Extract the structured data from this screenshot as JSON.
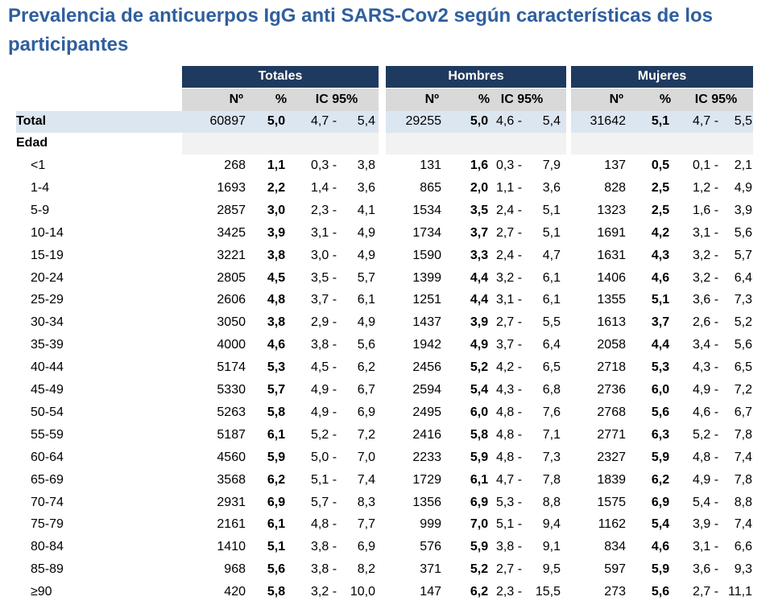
{
  "header": {
    "title": "Prevalencia de anticuerpos IgG anti SARS-Cov2 según características de los participantes"
  },
  "table": {
    "groups": [
      "Totales",
      "Hombres",
      "Mujeres"
    ],
    "subheaders": [
      "Nº",
      "%",
      "IC 95%"
    ],
    "total": {
      "label": "Total",
      "cells": [
        [
          60897,
          "5,0",
          "4,7 -",
          "5,4"
        ],
        [
          29255,
          "5,0",
          "4,6 -",
          "5,4"
        ],
        [
          31642,
          "5,1",
          "4,7 -",
          "5,5"
        ]
      ]
    },
    "section": "Edad",
    "rows": [
      {
        "label": "<1",
        "cells": [
          [
            268,
            "1,1",
            "0,3 -",
            "3,8"
          ],
          [
            131,
            "1,6",
            "0,3 -",
            "7,9"
          ],
          [
            137,
            "0,5",
            "0,1 -",
            "2,1"
          ]
        ]
      },
      {
        "label": "1-4",
        "cells": [
          [
            1693,
            "2,2",
            "1,4 -",
            "3,6"
          ],
          [
            865,
            "2,0",
            "1,1 -",
            "3,6"
          ],
          [
            828,
            "2,5",
            "1,2 -",
            "4,9"
          ]
        ]
      },
      {
        "label": "5-9",
        "cells": [
          [
            2857,
            "3,0",
            "2,3 -",
            "4,1"
          ],
          [
            1534,
            "3,5",
            "2,4 -",
            "5,1"
          ],
          [
            1323,
            "2,5",
            "1,6 -",
            "3,9"
          ]
        ]
      },
      {
        "label": "10-14",
        "cells": [
          [
            3425,
            "3,9",
            "3,1 -",
            "4,9"
          ],
          [
            1734,
            "3,7",
            "2,7 -",
            "5,1"
          ],
          [
            1691,
            "4,2",
            "3,1 -",
            "5,6"
          ]
        ]
      },
      {
        "label": "15-19",
        "cells": [
          [
            3221,
            "3,8",
            "3,0 -",
            "4,9"
          ],
          [
            1590,
            "3,3",
            "2,4 -",
            "4,7"
          ],
          [
            1631,
            "4,3",
            "3,2 -",
            "5,7"
          ]
        ]
      },
      {
        "label": "20-24",
        "cells": [
          [
            2805,
            "4,5",
            "3,5 -",
            "5,7"
          ],
          [
            1399,
            "4,4",
            "3,2 -",
            "6,1"
          ],
          [
            1406,
            "4,6",
            "3,2 -",
            "6,4"
          ]
        ]
      },
      {
        "label": "25-29",
        "cells": [
          [
            2606,
            "4,8",
            "3,7 -",
            "6,1"
          ],
          [
            1251,
            "4,4",
            "3,1 -",
            "6,1"
          ],
          [
            1355,
            "5,1",
            "3,6 -",
            "7,3"
          ]
        ]
      },
      {
        "label": "30-34",
        "cells": [
          [
            3050,
            "3,8",
            "2,9 -",
            "4,9"
          ],
          [
            1437,
            "3,9",
            "2,7 -",
            "5,5"
          ],
          [
            1613,
            "3,7",
            "2,6 -",
            "5,2"
          ]
        ]
      },
      {
        "label": "35-39",
        "cells": [
          [
            4000,
            "4,6",
            "3,8 -",
            "5,6"
          ],
          [
            1942,
            "4,9",
            "3,7 -",
            "6,4"
          ],
          [
            2058,
            "4,4",
            "3,4 -",
            "5,6"
          ]
        ]
      },
      {
        "label": "40-44",
        "cells": [
          [
            5174,
            "5,3",
            "4,5 -",
            "6,2"
          ],
          [
            2456,
            "5,2",
            "4,2 -",
            "6,5"
          ],
          [
            2718,
            "5,3",
            "4,3 -",
            "6,5"
          ]
        ]
      },
      {
        "label": "45-49",
        "cells": [
          [
            5330,
            "5,7",
            "4,9 -",
            "6,7"
          ],
          [
            2594,
            "5,4",
            "4,3 -",
            "6,8"
          ],
          [
            2736,
            "6,0",
            "4,9 -",
            "7,2"
          ]
        ]
      },
      {
        "label": "50-54",
        "cells": [
          [
            5263,
            "5,8",
            "4,9 -",
            "6,9"
          ],
          [
            2495,
            "6,0",
            "4,8 -",
            "7,6"
          ],
          [
            2768,
            "5,6",
            "4,6 -",
            "6,7"
          ]
        ]
      },
      {
        "label": "55-59",
        "cells": [
          [
            5187,
            "6,1",
            "5,2 -",
            "7,2"
          ],
          [
            2416,
            "5,8",
            "4,8 -",
            "7,1"
          ],
          [
            2771,
            "6,3",
            "5,2 -",
            "7,8"
          ]
        ]
      },
      {
        "label": "60-64",
        "cells": [
          [
            4560,
            "5,9",
            "5,0 -",
            "7,0"
          ],
          [
            2233,
            "5,9",
            "4,8 -",
            "7,3"
          ],
          [
            2327,
            "5,9",
            "4,8 -",
            "7,4"
          ]
        ]
      },
      {
        "label": "65-69",
        "cells": [
          [
            3568,
            "6,2",
            "5,1 -",
            "7,4"
          ],
          [
            1729,
            "6,1",
            "4,7 -",
            "7,8"
          ],
          [
            1839,
            "6,2",
            "4,9 -",
            "7,8"
          ]
        ]
      },
      {
        "label": "70-74",
        "cells": [
          [
            2931,
            "6,9",
            "5,7 -",
            "8,3"
          ],
          [
            1356,
            "6,9",
            "5,3 -",
            "8,8"
          ],
          [
            1575,
            "6,9",
            "5,4 -",
            "8,8"
          ]
        ]
      },
      {
        "label": "75-79",
        "cells": [
          [
            2161,
            "6,1",
            "4,8 -",
            "7,7"
          ],
          [
            999,
            "7,0",
            "5,1 -",
            "9,4"
          ],
          [
            1162,
            "5,4",
            "3,9 -",
            "7,4"
          ]
        ]
      },
      {
        "label": "80-84",
        "cells": [
          [
            1410,
            "5,1",
            "3,8 -",
            "6,9"
          ],
          [
            576,
            "5,9",
            "3,8 -",
            "9,1"
          ],
          [
            834,
            "4,6",
            "3,1 -",
            "6,6"
          ]
        ]
      },
      {
        "label": "85-89",
        "cells": [
          [
            968,
            "5,6",
            "3,8 -",
            "8,2"
          ],
          [
            371,
            "5,2",
            "2,7 -",
            "9,5"
          ],
          [
            597,
            "5,9",
            "3,6 -",
            "9,3"
          ]
        ]
      },
      {
        "label": "≥90",
        "cells": [
          [
            420,
            "5,8",
            "3,2 -",
            "10,0"
          ],
          [
            147,
            "6,2",
            "2,3 -",
            "15,5"
          ],
          [
            273,
            "5,6",
            "2,7 -",
            "11,1"
          ]
        ]
      }
    ]
  }
}
